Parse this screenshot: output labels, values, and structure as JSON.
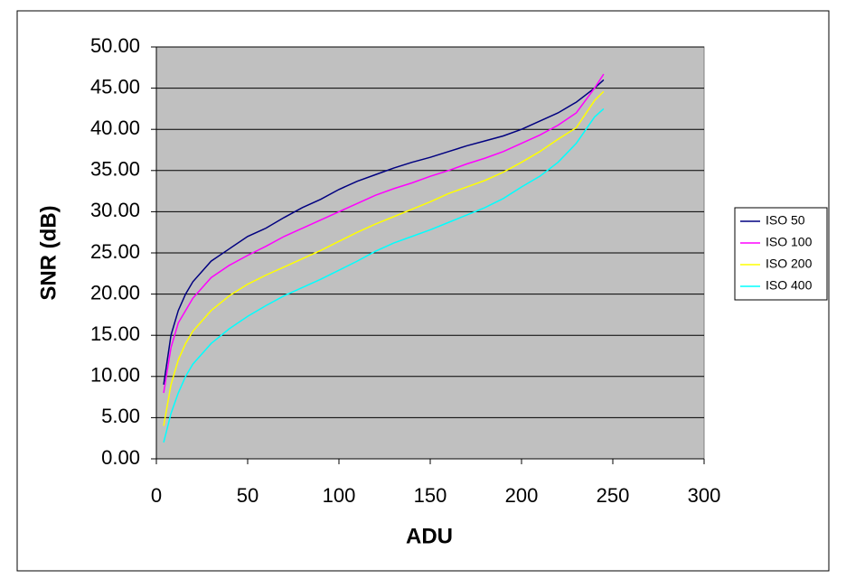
{
  "chart_data": {
    "type": "line",
    "xlabel": "ADU",
    "ylabel": "SNR (dB)",
    "x": [
      4,
      8,
      12,
      16,
      20,
      30,
      40,
      50,
      60,
      70,
      80,
      90,
      100,
      110,
      120,
      130,
      140,
      150,
      160,
      170,
      180,
      190,
      200,
      210,
      220,
      230,
      240,
      245
    ],
    "series": [
      {
        "name": "ISO 50",
        "color": "#000080",
        "values": [
          9,
          15,
          18,
          20,
          21.5,
          24,
          25.5,
          27,
          28,
          29.3,
          30.5,
          31.5,
          32.7,
          33.7,
          34.5,
          35.3,
          36,
          36.6,
          37.3,
          38,
          38.6,
          39.2,
          40,
          41,
          42,
          43.3,
          45,
          46
        ]
      },
      {
        "name": "ISO 100",
        "color": "#ff00ff",
        "values": [
          8,
          13.5,
          16.5,
          18,
          19.5,
          22,
          23.5,
          24.7,
          25.8,
          27,
          28,
          29,
          30,
          31,
          32,
          32.8,
          33.5,
          34.3,
          35,
          35.8,
          36.5,
          37.3,
          38.3,
          39.3,
          40.5,
          42,
          45,
          46.7
        ]
      },
      {
        "name": "ISO 200",
        "color": "#ffff00",
        "values": [
          4,
          9,
          12,
          14,
          15.5,
          18,
          19.8,
          21.2,
          22.3,
          23.3,
          24.3,
          25.3,
          26.4,
          27.5,
          28.5,
          29.4,
          30.3,
          31.2,
          32.2,
          33,
          33.8,
          34.8,
          36,
          37.3,
          38.8,
          40.2,
          43.5,
          44.6
        ]
      },
      {
        "name": "ISO 400",
        "color": "#00ffff",
        "values": [
          2,
          5.5,
          8,
          10,
          11.5,
          14,
          15.8,
          17.3,
          18.6,
          19.8,
          20.8,
          21.8,
          22.9,
          24,
          25.2,
          26.2,
          27,
          27.8,
          28.7,
          29.6,
          30.5,
          31.6,
          33,
          34.3,
          36,
          38.3,
          41.5,
          42.5
        ]
      }
    ],
    "xlim": [
      0,
      300
    ],
    "xticks": [
      0,
      50,
      100,
      150,
      200,
      250,
      300
    ],
    "ylim": [
      0,
      50
    ],
    "yticks": [
      {
        "value": 0,
        "label": "0.00"
      },
      {
        "value": 5,
        "label": "5.00"
      },
      {
        "value": 10,
        "label": "10.00"
      },
      {
        "value": 15,
        "label": "15.00"
      },
      {
        "value": 20,
        "label": "20.00"
      },
      {
        "value": 25,
        "label": "25.00"
      },
      {
        "value": 30,
        "label": "30.00"
      },
      {
        "value": 35,
        "label": "35.00"
      },
      {
        "value": 40,
        "label": "40.00"
      },
      {
        "value": 45,
        "label": "45.00"
      },
      {
        "value": 50,
        "label": "50.00"
      }
    ],
    "grid": true,
    "legend": "right",
    "background": "#c0c0c0"
  }
}
